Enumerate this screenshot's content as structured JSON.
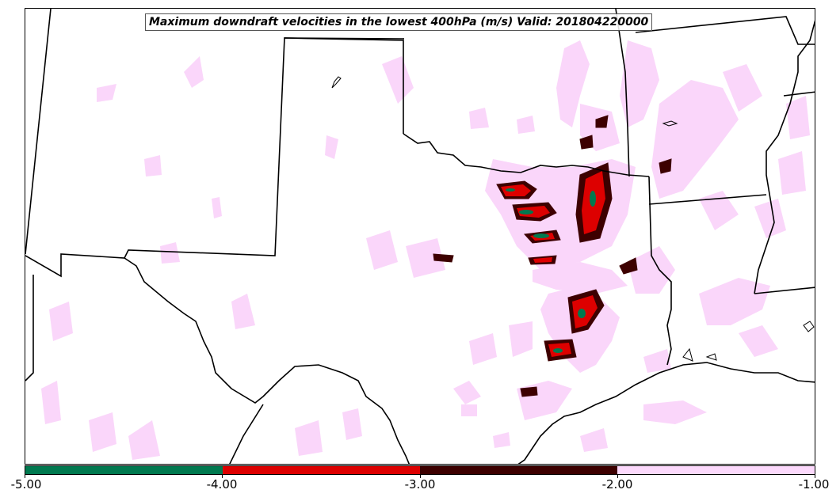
{
  "title": "Maximum downdraft velocities in the lowest 400hPa (m/s) Valid: 201804220000",
  "colorbar": {
    "levels": [
      "-5.00",
      "-4.00",
      "-3.00",
      "-2.00",
      "-1.00"
    ],
    "colors": [
      "#00794f",
      "#dd0000",
      "#3d0000",
      "#fcd9fc"
    ]
  },
  "colors": {
    "weak_downdraft": "#fad6fa",
    "moderate_downdraft": "#3d0000",
    "strong_downdraft": "#dd0000",
    "extreme_downdraft": "#00794f",
    "boundaries": "#000000"
  }
}
